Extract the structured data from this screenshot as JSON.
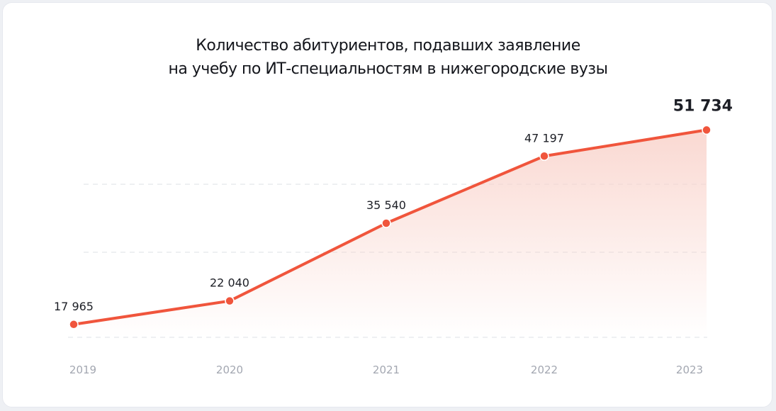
{
  "title": {
    "line1": "Количество абитуриентов, подавших заявление",
    "line2": "на учебу по ИТ-специальностям в нижегородские вузы"
  },
  "colors": {
    "line": "#f0553c",
    "area_top": "#f9d2ca",
    "grid": "#e4e6ea",
    "tick_text": "#a3a7b1"
  },
  "chart_data": {
    "type": "area",
    "title": "Количество абитуриентов, подавших заявление на учебу по ИТ-специальностям в нижегородские вузы",
    "categories": [
      "2019",
      "2020",
      "2021",
      "2022",
      "2023"
    ],
    "values": [
      17965,
      22040,
      35540,
      47197,
      51734
    ],
    "data_labels": [
      "17 965",
      "22 040",
      "35 540",
      "47 197",
      "51 734"
    ],
    "xlabel": "",
    "ylabel": "",
    "ylim": [
      14000,
      54000
    ],
    "grid": true,
    "legend": "none"
  }
}
